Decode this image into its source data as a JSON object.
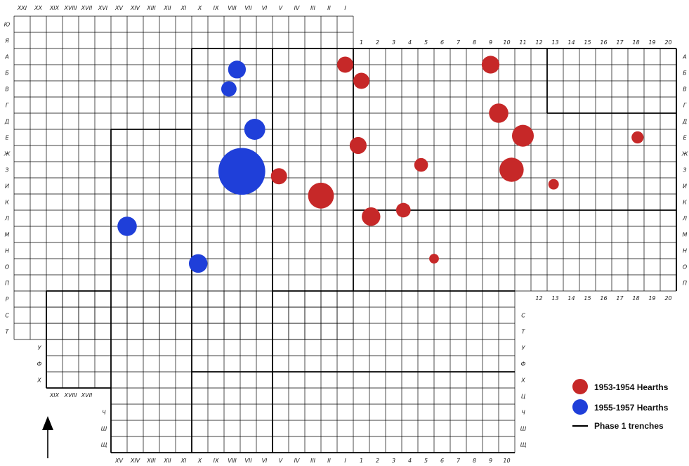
{
  "grid": {
    "top_roman": [
      "XXI",
      "XX",
      "XIX",
      "XVIII",
      "XVII",
      "XVI",
      "XV",
      "XIV",
      "XIII",
      "XII",
      "XI",
      "X",
      "IX",
      "VIII",
      "VII",
      "VI",
      "V",
      "IV",
      "III",
      "II",
      "I"
    ],
    "bottom_roman": [
      "XV",
      "XIV",
      "XIII",
      "XII",
      "XI",
      "X",
      "IX",
      "VIII",
      "VII",
      "VI",
      "V",
      "IV",
      "III",
      "II",
      "I"
    ],
    "left_letters": [
      "Ю",
      "Я",
      "А",
      "Б",
      "В",
      "Г",
      "Д",
      "Е",
      "Ж",
      "З",
      "И",
      "К",
      "Л",
      "М",
      "Н",
      "О",
      "П",
      "Р",
      "С",
      "Т"
    ],
    "right_letters": [
      "А",
      "Б",
      "В",
      "Г",
      "Д",
      "Е",
      "Ж",
      "З",
      "И",
      "К",
      "Л",
      "М",
      "Н",
      "О",
      "П"
    ],
    "inner_letters": [
      "У",
      "Ф",
      "Х"
    ],
    "lower_left_letters": [
      "Ч",
      "Ш",
      "Щ"
    ],
    "lower_right_letters": [
      "С",
      "Т",
      "У",
      "Ф",
      "Х",
      "Ц",
      "Ч",
      "Ш",
      "Щ"
    ],
    "top_numbers": [
      "1",
      "2",
      "3",
      "4",
      "5",
      "6",
      "7",
      "8",
      "9",
      "10",
      "11",
      "12",
      "13",
      "14",
      "15",
      "16",
      "17",
      "18",
      "19",
      "20"
    ],
    "mid_numbers": [
      "12",
      "13",
      "14",
      "15",
      "16",
      "17",
      "18",
      "19",
      "20"
    ],
    "bottom_numbers": [
      "1",
      "2",
      "3",
      "4",
      "5",
      "6",
      "7",
      "8",
      "9",
      "10"
    ],
    "inner_roman": [
      "XIX",
      "XVIII",
      "XVII"
    ]
  },
  "hearths": {
    "early_color": "#c62828",
    "late_color": "#1f3fd9",
    "early": [
      {
        "col": 20.5,
        "row": 3.0,
        "r": 1
      },
      {
        "col": 21.5,
        "row": 4.0,
        "r": 1
      },
      {
        "col": 29.5,
        "row": 3.0,
        "r": 1.1
      },
      {
        "col": 21.3,
        "row": 8.0,
        "r": 1.05
      },
      {
        "col": 30.0,
        "row": 6.0,
        "r": 1.2
      },
      {
        "col": 31.5,
        "row": 7.4,
        "r": 1.35
      },
      {
        "col": 38.6,
        "row": 7.5,
        "r": 0.75
      },
      {
        "col": 25.2,
        "row": 9.2,
        "r": 0.85
      },
      {
        "col": 30.8,
        "row": 9.5,
        "r": 1.5
      },
      {
        "col": 33.4,
        "row": 10.4,
        "r": 0.65
      },
      {
        "col": 16.4,
        "row": 9.9,
        "r": 1.0
      },
      {
        "col": 19.0,
        "row": 11.1,
        "r": 1.6
      },
      {
        "col": 22.1,
        "row": 12.4,
        "r": 1.15
      },
      {
        "col": 24.1,
        "row": 12.0,
        "r": 0.9
      },
      {
        "col": 26.0,
        "row": 15.0,
        "r": 0.6
      }
    ],
    "late": [
      {
        "col": 13.8,
        "row": 3.3,
        "r": 1.1
      },
      {
        "col": 13.3,
        "row": 4.5,
        "r": 0.95
      },
      {
        "col": 14.9,
        "row": 7.0,
        "r": 1.3
      },
      {
        "col": 14.1,
        "row": 9.6,
        "r": 2.9
      },
      {
        "col": 7.0,
        "row": 13.0,
        "r": 1.2
      },
      {
        "col": 11.4,
        "row": 15.3,
        "r": 1.15
      }
    ]
  },
  "legend": {
    "early_label": "1953-1954 Hearths",
    "late_label": "1955-1957 Hearths",
    "trench_label": "Phase 1 trenches"
  }
}
